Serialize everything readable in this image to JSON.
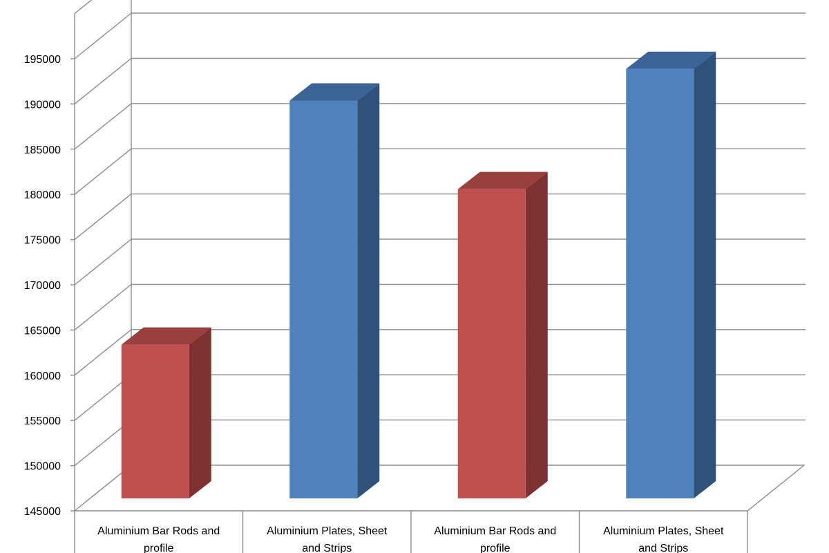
{
  "chart_data": {
    "type": "bar",
    "title": "",
    "xlabel": "",
    "ylabel": "",
    "categories": [
      "Aluminium Bar Rods and profile",
      "Aluminium Plates, Sheet and Strips",
      "Aluminium Bar Rods and profile",
      "Aluminium Plates, Sheet and Strips"
    ],
    "values": [
      162000,
      189000,
      179200,
      192500
    ],
    "bar_colors": [
      "#C0504D",
      "#4F81BD",
      "#C0504D",
      "#4F81BD"
    ],
    "bar_side_colors": [
      "#7F3030",
      "#30517A",
      "#7F3030",
      "#30517A"
    ],
    "bar_top_colors": [
      "#97403D",
      "#3B6396",
      "#97403D",
      "#3B6396"
    ],
    "yticks": [
      145000,
      150000,
      155000,
      160000,
      165000,
      170000,
      175000,
      180000,
      185000,
      190000,
      195000
    ],
    "ylim": [
      145000,
      195000
    ],
    "grid": true,
    "legend": "none",
    "style": "3d-column"
  }
}
